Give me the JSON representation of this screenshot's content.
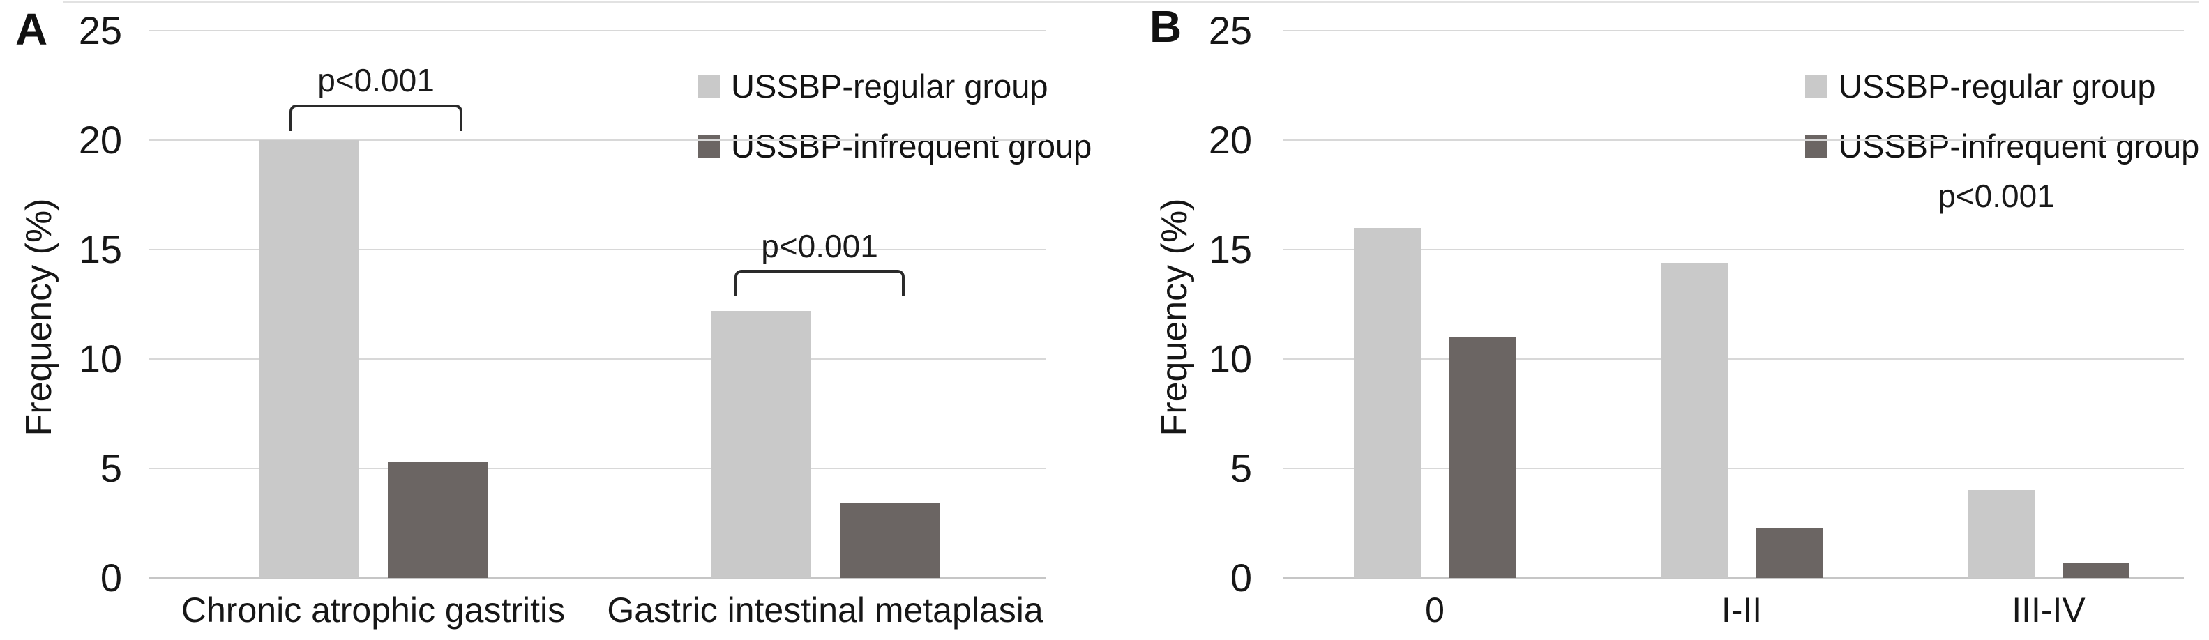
{
  "figure": {
    "panels": [
      {
        "letter": "A"
      },
      {
        "letter": "B"
      }
    ]
  },
  "colors": {
    "regular_group": "#c9c9c9",
    "infrequent_group": "#6b6563",
    "gridline": "#d8d8d8",
    "baseline": "#c6c6c6",
    "text": "#1b1b1b",
    "bracket": "#2a2a2a"
  },
  "chart_data": [
    {
      "type": "bar",
      "panel": "A",
      "title": "",
      "categories": [
        "Chronic atrophic gastritis",
        "Gastric intestinal metaplasia"
      ],
      "series": [
        {
          "name": "USSBP-regular group",
          "color": "#c9c9c9",
          "values": [
            20.0,
            12.2
          ]
        },
        {
          "name": "USSBP-infrequent group",
          "color": "#6b6563",
          "values": [
            5.3,
            3.4
          ]
        }
      ],
      "xlabel": "",
      "ylabel": "Frequency (%)",
      "ylim": [
        0,
        25
      ],
      "yticks": [
        0,
        5,
        10,
        15,
        20,
        25
      ],
      "grid": true,
      "legend_position": "top-right",
      "annotations": [
        {
          "type": "bracket",
          "text": "p<0.001",
          "category": "Chronic atrophic gastritis"
        },
        {
          "type": "bracket",
          "text": "p<0.001",
          "category": "Gastric intestinal metaplasia"
        }
      ]
    },
    {
      "type": "bar",
      "panel": "B",
      "title": "",
      "categories": [
        "0",
        "I-II",
        "III-IV"
      ],
      "series": [
        {
          "name": "USSBP-regular group",
          "color": "#c9c9c9",
          "values": [
            16.0,
            14.4,
            4.0
          ]
        },
        {
          "name": "USSBP-infrequent group",
          "color": "#6b6563",
          "values": [
            11.0,
            2.3,
            0.7
          ]
        }
      ],
      "xlabel": "",
      "ylabel": "Frequency (%)",
      "ylim": [
        0,
        25
      ],
      "yticks": [
        0,
        5,
        10,
        15,
        20,
        25
      ],
      "grid": true,
      "legend_position": "top-right",
      "annotations": [
        {
          "type": "text",
          "text": "p<0.001"
        }
      ]
    }
  ]
}
